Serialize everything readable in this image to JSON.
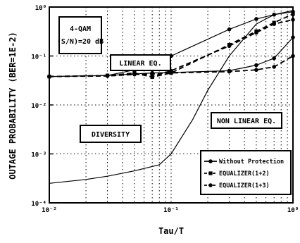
{
  "chart_data": {
    "type": "line",
    "xlabel": "Tau/T",
    "ylabel": "OUTAGE PROBABILITY (BER=1E-2)",
    "xscale": "log",
    "yscale": "log",
    "xlim": [
      0.01,
      1
    ],
    "ylim": [
      0.0001,
      1
    ],
    "x_ticks": [
      "10⁻²",
      "10⁻¹",
      "10⁰"
    ],
    "y_ticks": [
      "10⁰",
      "10⁻¹",
      "10⁻²",
      "10⁻³",
      "10⁻⁴"
    ],
    "grid": true,
    "legend_position": "bottom-right",
    "series": [
      {
        "name": "Without Protection",
        "style": "solid",
        "marker": "dot",
        "group": "linear",
        "x": [
          0.01,
          0.03,
          0.05,
          0.07,
          0.1,
          0.3,
          0.5,
          0.7,
          1.0
        ],
        "y": [
          0.038,
          0.04,
          0.052,
          0.065,
          0.1,
          0.35,
          0.57,
          0.7,
          0.8
        ]
      },
      {
        "name": "EQUALIZER(1+2)",
        "style": "dashed",
        "marker": "square",
        "group": "linear",
        "x": [
          0.01,
          0.03,
          0.05,
          0.07,
          0.1,
          0.3,
          0.5,
          0.7,
          1.0
        ],
        "y": [
          0.038,
          0.04,
          0.045,
          0.037,
          0.045,
          0.17,
          0.32,
          0.48,
          0.72
        ]
      },
      {
        "name": "EQUALIZER(1+3)",
        "style": "dashed",
        "marker": "dot",
        "group": "linear",
        "x": [
          0.01,
          0.03,
          0.05,
          0.07,
          0.1,
          0.3,
          0.5,
          0.7,
          1.0
        ],
        "y": [
          0.038,
          0.04,
          0.044,
          0.038,
          0.05,
          0.16,
          0.3,
          0.45,
          0.55
        ]
      },
      {
        "name": "",
        "style": "solid",
        "marker": "dot",
        "group": "non-linear",
        "x": [
          0.01,
          0.03,
          0.05,
          0.07,
          0.1,
          0.3,
          0.5,
          0.7,
          1.0
        ],
        "y": [
          0.038,
          0.04,
          0.043,
          0.045,
          0.046,
          0.05,
          0.065,
          0.09,
          0.24
        ]
      },
      {
        "name": "",
        "style": "dashed",
        "marker": "dot",
        "group": "non-linear",
        "x": [
          0.01,
          0.03,
          0.05,
          0.07,
          0.1,
          0.3,
          0.5,
          0.7,
          1.0
        ],
        "y": [
          0.038,
          0.039,
          0.042,
          0.043,
          0.045,
          0.048,
          0.052,
          0.06,
          0.1
        ]
      },
      {
        "name": "",
        "style": "solid",
        "marker": "none",
        "group": "diversity",
        "x": [
          0.01,
          0.02,
          0.03,
          0.05,
          0.08,
          0.1,
          0.15,
          0.2,
          0.3,
          0.5,
          0.7,
          1.0
        ],
        "y": [
          0.00025,
          0.0003,
          0.00035,
          0.00045,
          0.0006,
          0.001,
          0.005,
          0.02,
          0.1,
          0.45,
          0.7,
          0.85
        ]
      }
    ],
    "annotations": {
      "modulation": "4-QAM",
      "snr": "(S/N)=20 dB",
      "linear": "LINEAR EQ.",
      "nonlinear": "NON LINEAR EQ.",
      "diversity": "DIVERSITY"
    },
    "legend": [
      {
        "label": "Without Protection",
        "style": "solid",
        "marker": "dot"
      },
      {
        "label": "EQUALIZER(1+2)",
        "style": "dashed",
        "marker": "square"
      },
      {
        "label": "EQUALIZER(1+3)",
        "style": "dashed",
        "marker": "dot"
      }
    ]
  }
}
